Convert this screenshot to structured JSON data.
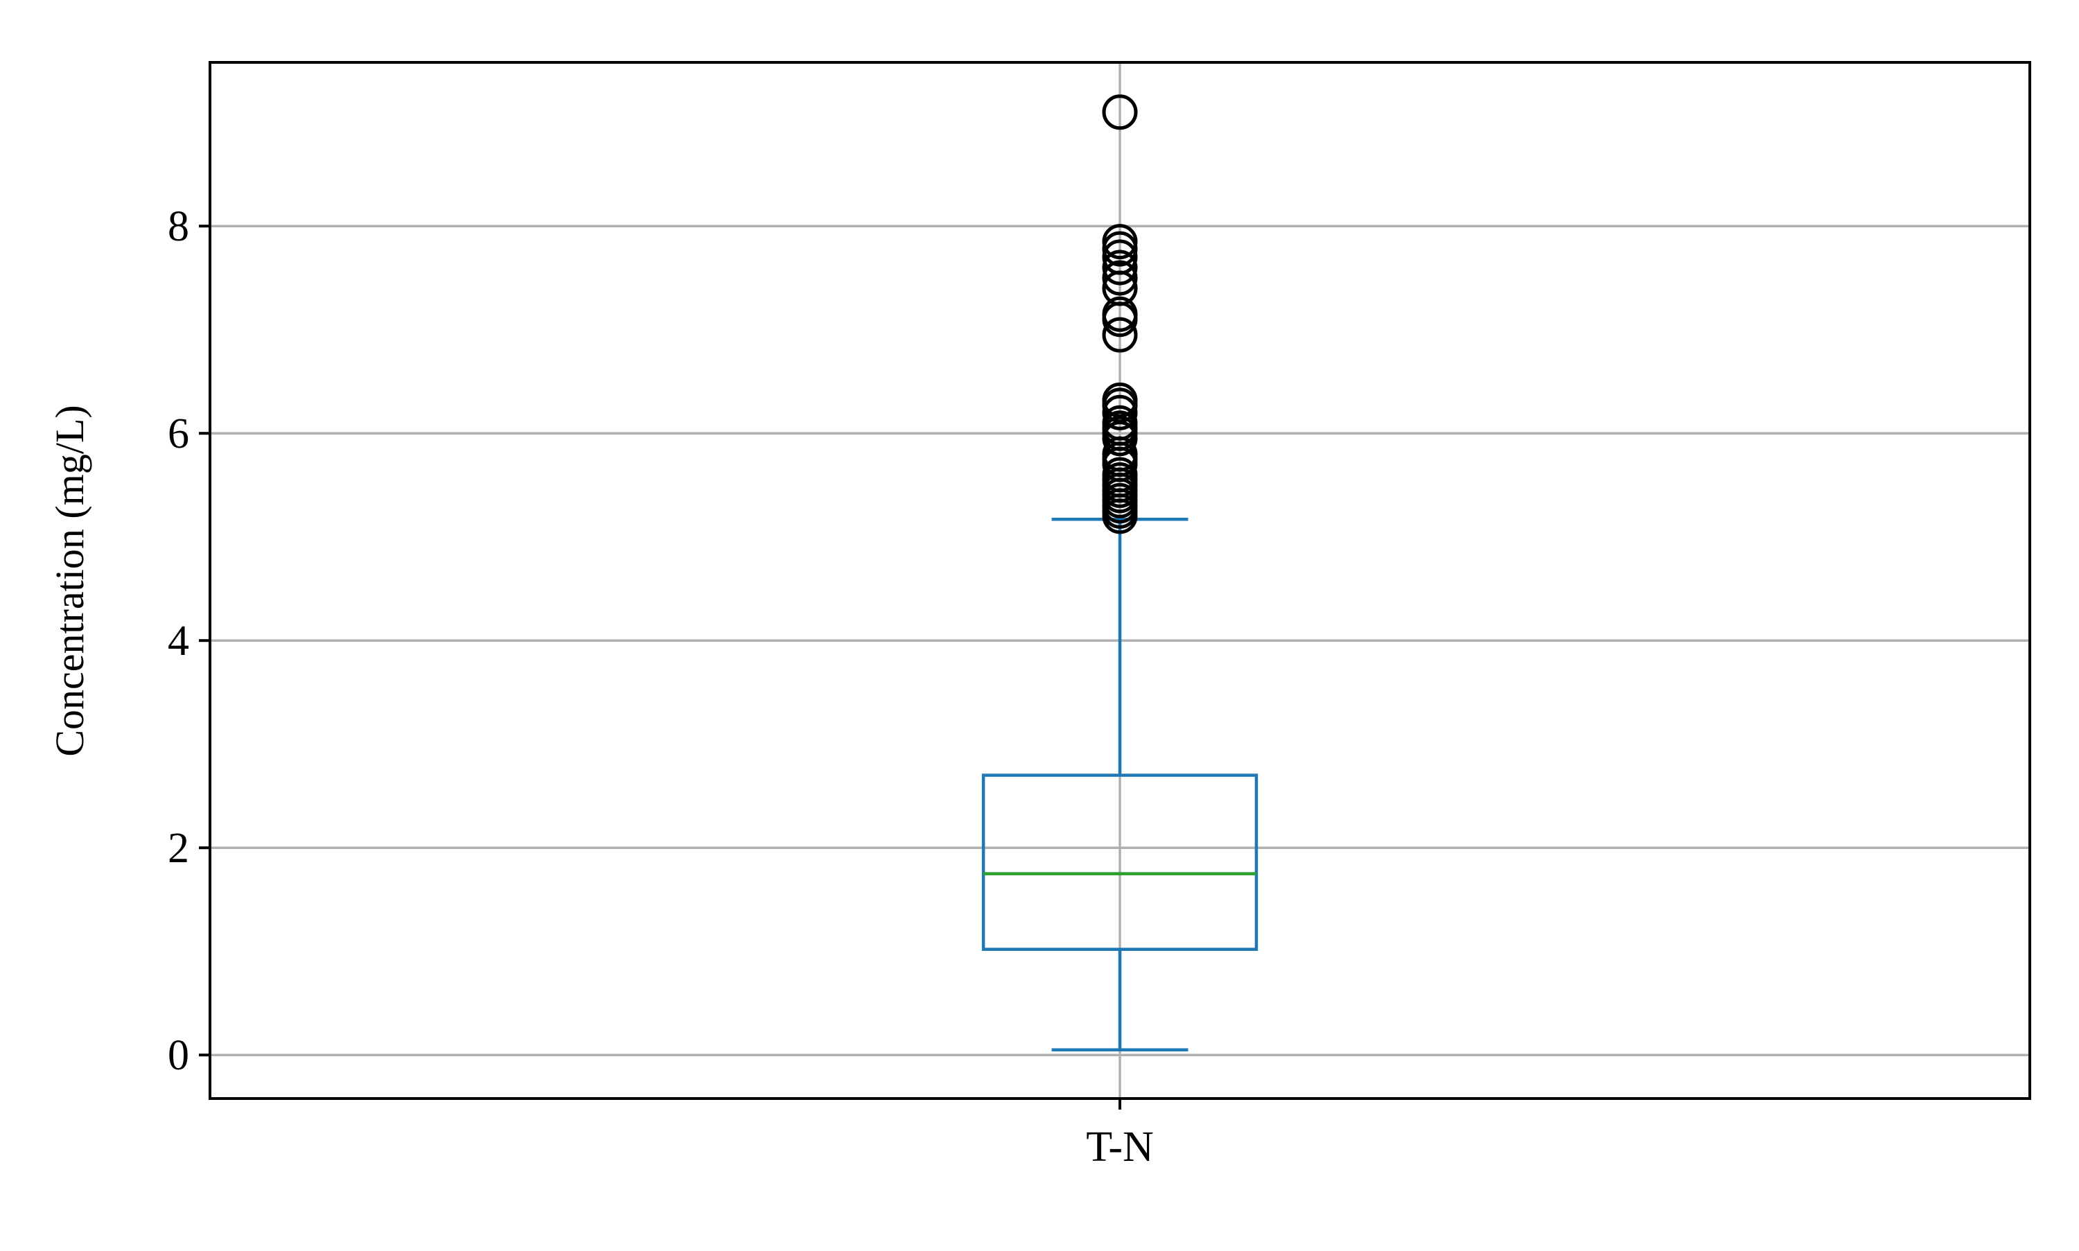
{
  "chart_data": {
    "type": "box",
    "title": "",
    "xlabel": "",
    "ylabel": "Concentration (mg/L)",
    "ylim": [
      -0.42,
      9.58
    ],
    "yticks": [
      0,
      2,
      4,
      6,
      8
    ],
    "grid": true,
    "categories": [
      "T-N"
    ],
    "boxes": [
      {
        "category": "T-N",
        "whisker_low": 0.05,
        "q1": 1.02,
        "median": 1.75,
        "q3": 2.7,
        "whisker_high": 5.17,
        "outliers": [
          5.2,
          5.25,
          5.3,
          5.35,
          5.4,
          5.45,
          5.5,
          5.55,
          5.6,
          5.7,
          5.75,
          5.8,
          5.95,
          6.0,
          6.05,
          6.1,
          6.2,
          6.27,
          6.32,
          6.95,
          7.1,
          7.15,
          7.4,
          7.5,
          7.6,
          7.7,
          7.78,
          7.85,
          9.1
        ]
      }
    ],
    "colors": {
      "box": "#1f77b4",
      "median": "#2ca02c",
      "grid": "#b0b0b0",
      "outlier": "#000000",
      "axes": "#000000"
    }
  }
}
